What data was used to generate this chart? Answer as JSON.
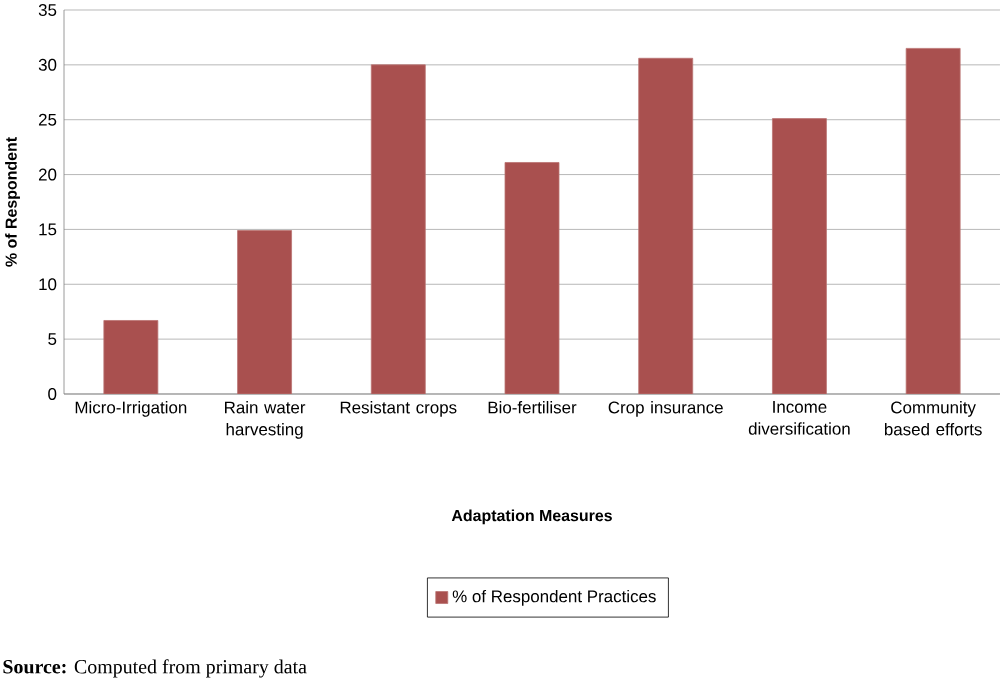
{
  "chart_data": {
    "type": "bar",
    "xlabel": "Adaptation Measures",
    "ylabel": "% of Respondent",
    "categories": [
      "Micro-Irrigation",
      "Rain water harvesting",
      "Resistant crops",
      "Bio-fertiliser",
      "Crop insurance",
      "Income diversification",
      "Community based efforts"
    ],
    "series": [
      {
        "name": "% of Respondent Practices",
        "color": "#a9504f",
        "values": [
          6.7,
          14.9,
          30.0,
          21.1,
          30.6,
          25.1,
          31.5
        ]
      }
    ],
    "ylim": [
      0,
      35
    ],
    "yticks": [
      0,
      5,
      10,
      15,
      20,
      25,
      30,
      35
    ],
    "grid": "y",
    "legend": "bottom",
    "annotations": [
      "**Source:** Computed from primary data"
    ]
  }
}
